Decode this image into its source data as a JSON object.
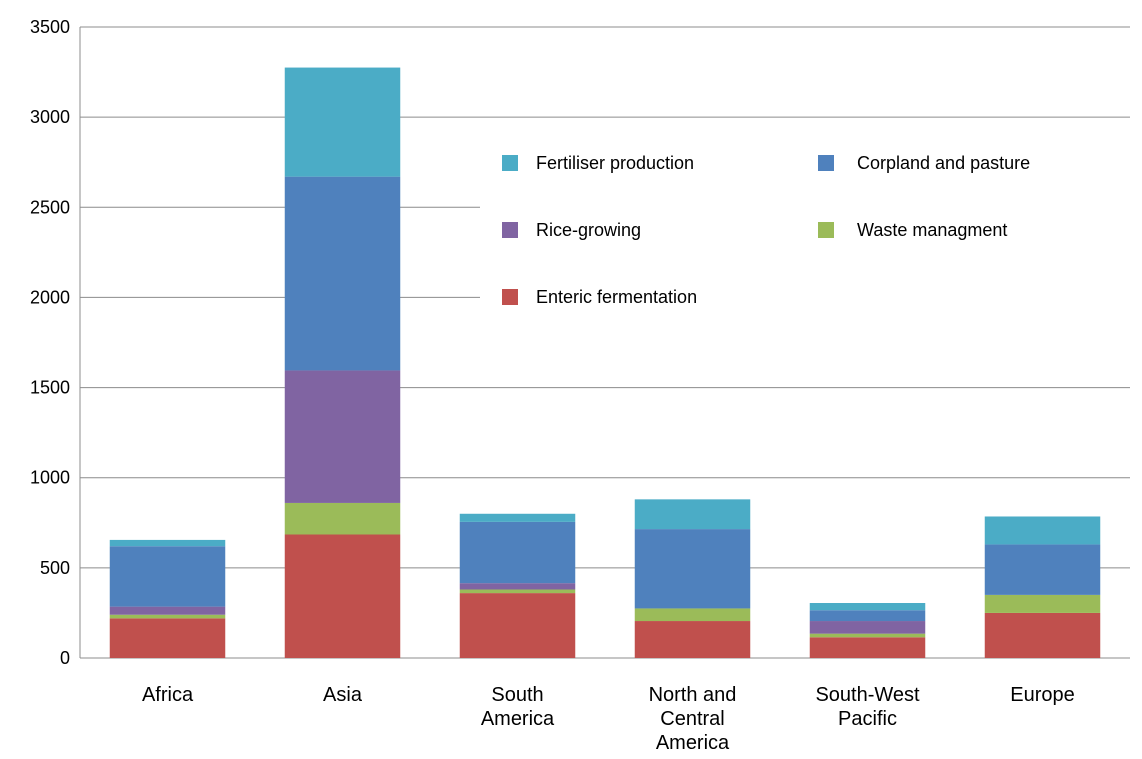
{
  "chart_data": {
    "type": "bar",
    "stacked": true,
    "title": "",
    "xlabel": "",
    "ylabel": "",
    "ylim": [
      0,
      3500
    ],
    "yticks": [
      0,
      500,
      1000,
      1500,
      2000,
      2500,
      3000,
      3500
    ],
    "grid": "horizontal",
    "legend_position": "inside top-right",
    "categories": [
      [
        "Africa"
      ],
      [
        "Asia"
      ],
      [
        "South",
        "America"
      ],
      [
        "North and",
        "Central",
        "America"
      ],
      [
        "South-West",
        "Pacific"
      ],
      [
        "Europe"
      ]
    ],
    "series": [
      {
        "name": "Enteric fermentation",
        "color": "#c0504d",
        "values": [
          220,
          685,
          360,
          205,
          115,
          250
        ]
      },
      {
        "name": "Waste managment",
        "color": "#9bbb59",
        "values": [
          20,
          175,
          20,
          70,
          20,
          100
        ]
      },
      {
        "name": "Rice-growing",
        "color": "#8064a2",
        "values": [
          45,
          735,
          35,
          0,
          70,
          0
        ]
      },
      {
        "name": "Corpland and pasture",
        "color": "#4f81bd",
        "values": [
          335,
          1075,
          340,
          440,
          60,
          280
        ]
      },
      {
        "name": "Fertiliser production",
        "color": "#4bacc6",
        "values": [
          35,
          605,
          45,
          165,
          40,
          155
        ]
      }
    ],
    "legend_order": [
      "Fertiliser production",
      "Corpland and pasture",
      "Rice-growing",
      "Waste managment",
      "Enteric fermentation"
    ]
  }
}
